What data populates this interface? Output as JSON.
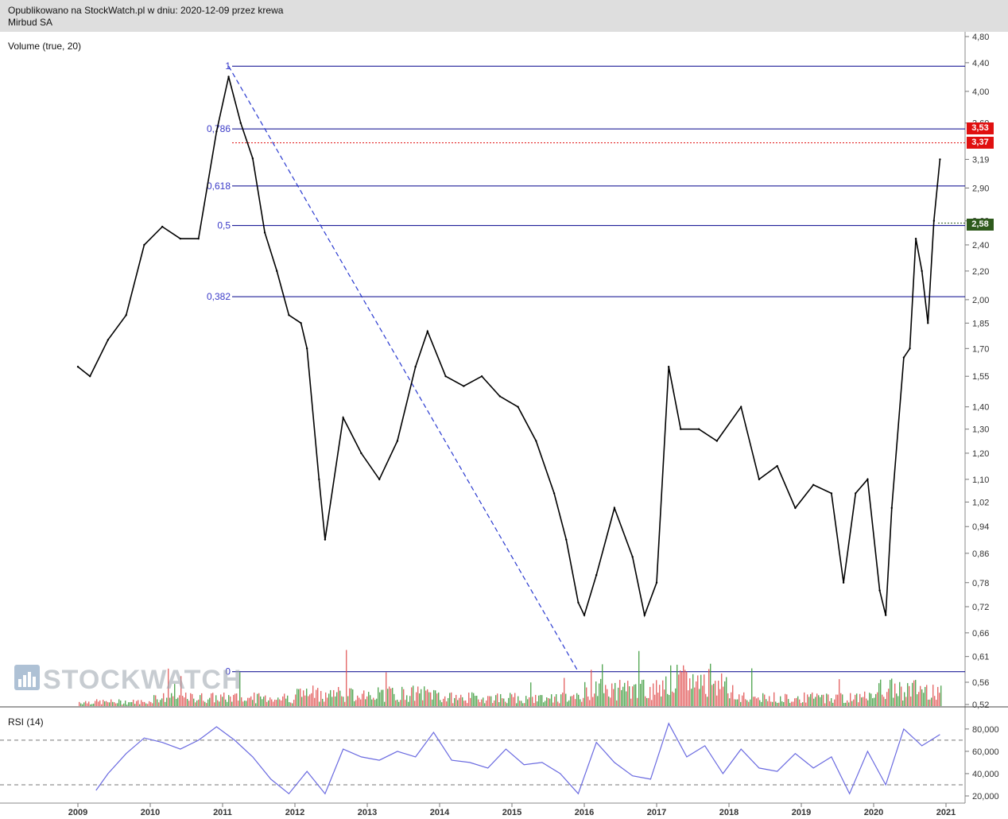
{
  "header": {
    "line1": "Opublikowano na StockWatch.pl w dniu: 2020-12-09 przez krewa",
    "line2": "Mirbud SA"
  },
  "indicators": {
    "volume_label": "Volume (true, 20)",
    "rsi_label": "RSI (14)"
  },
  "watermark": "STOCKWATCH",
  "price_tags": {
    "tag_353": "3,53",
    "tag_337": "3,37",
    "tag_258": "2,58"
  },
  "colors": {
    "price": "#000000",
    "fib_line": "#00008b",
    "fib_text": "#3a3ac8",
    "vol_up": "#3a9a3a",
    "vol_down": "#e05050",
    "rsi": "#6a6ae0",
    "tag_red": "#e01010",
    "tag_green": "#2e5a1c"
  },
  "chart_data": [
    {
      "type": "line",
      "title": "Mirbud SA",
      "subtitle": "Opublikowano na StockWatch.pl w dniu: 2020-12-09 przez krewa",
      "y_scale": "log",
      "y_ticks": [
        "4,80",
        "4,40",
        "4,00",
        "3,60",
        "3,19",
        "2,90",
        "2,60",
        "2,40",
        "2,20",
        "2,00",
        "1,85",
        "1,70",
        "1,55",
        "1,40",
        "1,30",
        "1,20",
        "1,10",
        "1,02",
        "0,94",
        "0,86",
        "0,78",
        "0,72",
        "0,66",
        "0,61",
        "0,56",
        "0,52"
      ],
      "x_ticks": [
        "2009",
        "2010",
        "2011",
        "2012",
        "2013",
        "2014",
        "2015",
        "2016",
        "2017",
        "2018",
        "2019",
        "2020",
        "2021"
      ],
      "series": [
        {
          "name": "",
          "x": [
            "2009-01",
            "2009-03",
            "2009-06",
            "2009-09",
            "2009-12",
            "2010-03",
            "2010-06",
            "2010-09",
            "2010-12",
            "2011-02",
            "2011-04",
            "2011-06",
            "2011-08",
            "2011-10",
            "2011-12",
            "2012-02",
            "2012-03",
            "2012-05",
            "2012-06",
            "2012-09",
            "2012-12",
            "2013-03",
            "2013-06",
            "2013-09",
            "2013-11",
            "2014-02",
            "2014-05",
            "2014-08",
            "2014-11",
            "2015-02",
            "2015-05",
            "2015-08",
            "2015-10",
            "2015-12",
            "2016-01",
            "2016-03",
            "2016-06",
            "2016-09",
            "2016-11",
            "2017-01",
            "2017-03",
            "2017-05",
            "2017-08",
            "2017-11",
            "2018-03",
            "2018-06",
            "2018-09",
            "2018-12",
            "2019-03",
            "2019-06",
            "2019-08",
            "2019-10",
            "2019-12",
            "2020-02",
            "2020-03",
            "2020-04",
            "2020-06",
            "2020-07",
            "2020-08",
            "2020-09",
            "2020-10",
            "2020-11",
            "2020-12"
          ],
          "values": [
            1.6,
            1.55,
            1.75,
            1.9,
            2.4,
            2.55,
            2.45,
            2.45,
            3.5,
            4.2,
            3.6,
            3.2,
            2.5,
            2.2,
            1.9,
            1.85,
            1.7,
            1.1,
            0.9,
            1.35,
            1.2,
            1.1,
            1.25,
            1.6,
            1.8,
            1.55,
            1.5,
            1.55,
            1.45,
            1.4,
            1.25,
            1.05,
            0.9,
            0.73,
            0.7,
            0.8,
            1.0,
            0.85,
            0.7,
            0.78,
            1.6,
            1.3,
            1.3,
            1.25,
            1.4,
            1.1,
            1.15,
            1.0,
            1.08,
            1.05,
            0.78,
            1.05,
            1.1,
            0.76,
            0.7,
            1.0,
            1.65,
            1.7,
            2.45,
            2.2,
            1.85,
            2.6,
            3.19
          ]
        },
        {
          "name": "",
          "kind": "fibonacci",
          "levels": [
            {
              "label": "1",
              "price": 4.35
            },
            {
              "label": "0,786",
              "price": 3.53
            },
            {
              "label": "0,618",
              "price": 2.92
            },
            {
              "label": "0,5",
              "price": 2.56
            },
            {
              "label": "0,382",
              "price": 2.02
            },
            {
              "label": "0",
              "price": 0.58
            }
          ],
          "extra_levels": [
            {
              "price": 3.37,
              "style": "dotted-red"
            },
            {
              "price": 2.58,
              "style": "dotted-green"
            }
          ],
          "diagonal": {
            "from": [
              "2011-02",
              4.35
            ],
            "to": [
              "2015-12",
              0.58
            ]
          }
        }
      ],
      "grid": false,
      "legend": "none"
    },
    {
      "type": "bar",
      "title": "Volume (true, 20)",
      "x": [
        "2009",
        "2010",
        "2011",
        "2012",
        "2013",
        "2014",
        "2015",
        "2016",
        "2017",
        "2018",
        "2019",
        "2020",
        "2021"
      ],
      "series": [
        {
          "name": "",
          "values": [
            1,
            2,
            2,
            3,
            3,
            2,
            2,
            4,
            6,
            2,
            2,
            4,
            6
          ]
        }
      ]
    },
    {
      "type": "line",
      "title": "RSI (14)",
      "y_ticks": [
        "80,000",
        "60,000",
        "40,000",
        "20,000"
      ],
      "ylim": [
        15,
        92
      ],
      "reference_lines": [
        70,
        30
      ],
      "series": [
        {
          "name": "",
          "x": [
            "2009-04",
            "2009-06",
            "2009-09",
            "2009-12",
            "2010-03",
            "2010-06",
            "2010-09",
            "2010-12",
            "2011-03",
            "2011-06",
            "2011-09",
            "2011-12",
            "2012-03",
            "2012-06",
            "2012-09",
            "2012-12",
            "2013-03",
            "2013-06",
            "2013-09",
            "2013-12",
            "2014-03",
            "2014-06",
            "2014-09",
            "2014-12",
            "2015-03",
            "2015-06",
            "2015-09",
            "2015-12",
            "2016-03",
            "2016-06",
            "2016-09",
            "2016-12",
            "2017-03",
            "2017-06",
            "2017-09",
            "2017-12",
            "2018-03",
            "2018-06",
            "2018-09",
            "2018-12",
            "2019-03",
            "2019-06",
            "2019-09",
            "2019-12",
            "2020-03",
            "2020-06",
            "2020-09",
            "2020-12"
          ],
          "values": [
            25,
            40,
            58,
            72,
            68,
            62,
            70,
            82,
            70,
            55,
            35,
            22,
            42,
            22,
            62,
            55,
            52,
            60,
            55,
            77,
            52,
            50,
            45,
            62,
            48,
            50,
            40,
            22,
            68,
            50,
            38,
            35,
            85,
            55,
            65,
            40,
            62,
            45,
            42,
            58,
            45,
            55,
            22,
            60,
            30,
            80,
            65,
            75
          ]
        }
      ]
    }
  ]
}
